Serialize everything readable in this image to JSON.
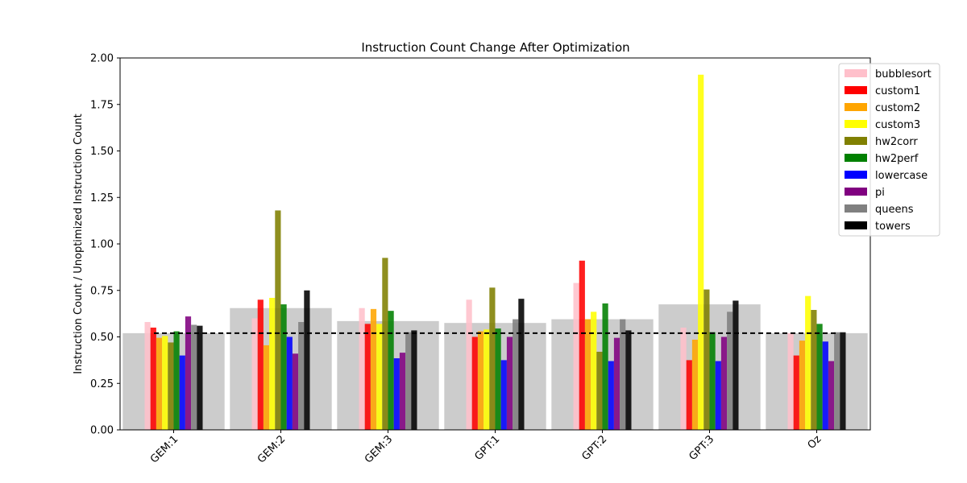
{
  "chart_data": {
    "type": "bar",
    "title": "Instruction Count Change After Optimization",
    "xlabel": "",
    "ylabel": "Instruction Count / Unoptimized Instruction Count",
    "ylim": [
      0,
      2.0
    ],
    "yticks": [
      "0.00",
      "0.25",
      "0.50",
      "0.75",
      "1.00",
      "1.25",
      "1.50",
      "1.75",
      "2.00"
    ],
    "categories": [
      "GEM:1",
      "GEM:2",
      "GEM:3",
      "GPT:1",
      "GPT:2",
      "GPT:3",
      "Oz"
    ],
    "averages": [
      0.52,
      0.655,
      0.585,
      0.575,
      0.595,
      0.675,
      0.52
    ],
    "reference_line": 0.52,
    "legend_position": "top-right",
    "series": [
      {
        "name": "bubblesort",
        "color": "#ffc0cb",
        "values": [
          0.58,
          0.6,
          0.655,
          0.7,
          0.79,
          0.55,
          0.52
        ]
      },
      {
        "name": "custom1",
        "color": "#ff0000",
        "values": [
          0.55,
          0.7,
          0.57,
          0.5,
          0.91,
          0.375,
          0.4
        ]
      },
      {
        "name": "custom2",
        "color": "#ffa500",
        "values": [
          0.495,
          0.455,
          0.65,
          0.53,
          0.595,
          0.485,
          0.48
        ]
      },
      {
        "name": "custom3",
        "color": "#ffff00",
        "values": [
          0.505,
          0.71,
          0.57,
          0.54,
          0.635,
          1.91,
          0.72
        ]
      },
      {
        "name": "hw2corr",
        "color": "#808000",
        "values": [
          0.47,
          1.18,
          0.925,
          0.765,
          0.42,
          0.755,
          0.645
        ]
      },
      {
        "name": "hw2perf",
        "color": "#008000",
        "values": [
          0.53,
          0.675,
          0.64,
          0.545,
          0.68,
          0.525,
          0.57
        ]
      },
      {
        "name": "lowercase",
        "color": "#0000ff",
        "values": [
          0.4,
          0.5,
          0.385,
          0.375,
          0.37,
          0.37,
          0.475
        ]
      },
      {
        "name": "pi",
        "color": "#800080",
        "values": [
          0.61,
          0.41,
          0.415,
          0.5,
          0.495,
          0.5,
          0.37
        ]
      },
      {
        "name": "queens",
        "color": "#808080",
        "values": [
          0.565,
          0.58,
          0.525,
          0.595,
          0.595,
          0.635,
          0.525
        ]
      },
      {
        "name": "towers",
        "color": "#000000",
        "values": [
          0.56,
          0.75,
          0.535,
          0.705,
          0.535,
          0.695,
          0.525
        ]
      }
    ]
  }
}
